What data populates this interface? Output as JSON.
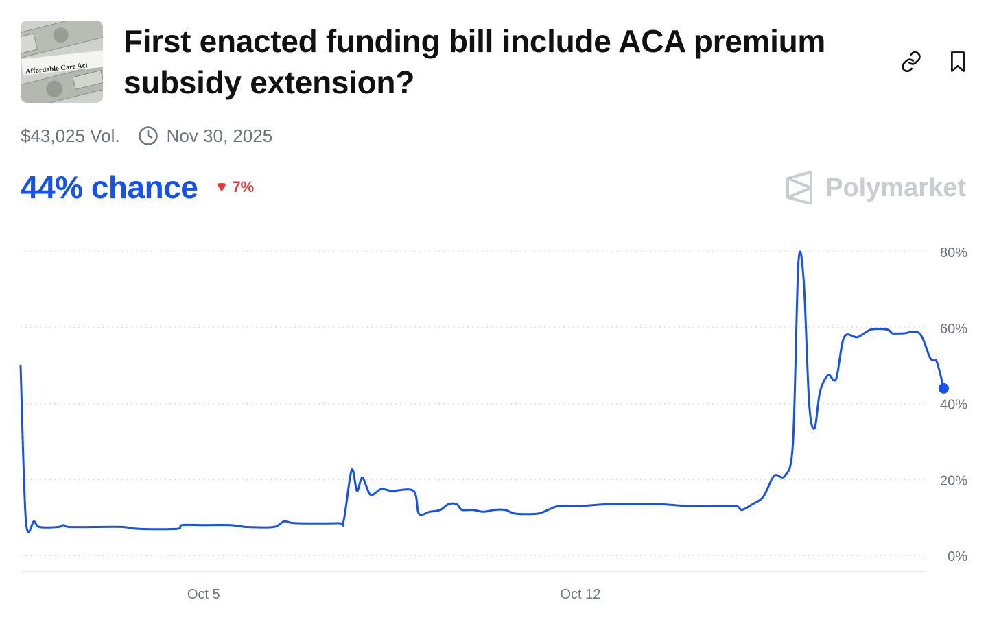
{
  "market": {
    "title": "First enacted funding bill include ACA premium subsidy extension?",
    "thumbnail_caption": "Affordable Care Act",
    "volume": "$43,025 Vol.",
    "end_date": "Nov 30, 2025",
    "chance_label": "44% chance",
    "change_label": "7%",
    "change_direction": "down",
    "brand": "Polymarket"
  },
  "icons": {
    "link": "link-icon",
    "bookmark": "bookmark-icon",
    "clock": "clock-icon",
    "down_arrow": "triangle-down-icon",
    "brand_logo": "polymarket-logo-icon"
  },
  "colors": {
    "accent": "#1652f0",
    "negative": "#e23b3b",
    "muted": "#6b7280",
    "grid": "#d7d9dd",
    "brand_muted": "#c9ccd2"
  },
  "chart_data": {
    "type": "line",
    "ylim": [
      0,
      80
    ],
    "yticks": [
      0,
      20,
      40,
      60,
      80
    ],
    "ytick_labels": [
      "0%",
      "20%",
      "40%",
      "60%",
      "80%"
    ],
    "xlim": [
      0.6,
      17.4
    ],
    "xtick_positions": [
      4,
      11
    ],
    "xtick_labels": [
      "Oct 5",
      "Oct 12"
    ],
    "grid": true,
    "series": [
      {
        "points": [
          [
            0.6,
            50
          ],
          [
            0.7,
            9
          ],
          [
            0.85,
            9
          ],
          [
            0.95,
            7.5
          ],
          [
            1.3,
            7.5
          ],
          [
            1.4,
            8
          ],
          [
            1.5,
            7.5
          ],
          [
            2.0,
            7.5
          ],
          [
            2.5,
            7.5
          ],
          [
            2.8,
            7
          ],
          [
            3.5,
            7
          ],
          [
            3.6,
            8
          ],
          [
            4.0,
            8
          ],
          [
            4.5,
            8
          ],
          [
            4.8,
            7.5
          ],
          [
            5.3,
            7.5
          ],
          [
            5.5,
            9
          ],
          [
            5.7,
            8.5
          ],
          [
            6.5,
            8.5
          ],
          [
            6.6,
            9
          ],
          [
            6.75,
            22.5
          ],
          [
            6.85,
            17
          ],
          [
            6.95,
            20.5
          ],
          [
            7.1,
            16
          ],
          [
            7.3,
            17.5
          ],
          [
            7.5,
            17
          ],
          [
            7.9,
            17
          ],
          [
            8.0,
            11
          ],
          [
            8.2,
            11.5
          ],
          [
            8.4,
            12
          ],
          [
            8.55,
            13.5
          ],
          [
            8.7,
            13.5
          ],
          [
            8.8,
            12
          ],
          [
            9.0,
            12
          ],
          [
            9.2,
            11.5
          ],
          [
            9.4,
            12
          ],
          [
            9.6,
            12
          ],
          [
            9.8,
            11
          ],
          [
            10.2,
            11
          ],
          [
            10.4,
            12
          ],
          [
            10.6,
            13
          ],
          [
            11.0,
            13
          ],
          [
            11.5,
            13.5
          ],
          [
            12.0,
            13.5
          ],
          [
            12.5,
            13.5
          ],
          [
            13.0,
            13
          ],
          [
            13.6,
            13
          ],
          [
            13.9,
            13
          ],
          [
            14.0,
            12
          ],
          [
            14.2,
            13.5
          ],
          [
            14.4,
            15.5
          ],
          [
            14.6,
            21
          ],
          [
            14.8,
            21
          ],
          [
            14.95,
            30
          ],
          [
            15.05,
            77
          ],
          [
            15.15,
            72
          ],
          [
            15.25,
            40
          ],
          [
            15.35,
            33.5
          ],
          [
            15.45,
            43
          ],
          [
            15.6,
            47.5
          ],
          [
            15.75,
            46.5
          ],
          [
            15.9,
            57.5
          ],
          [
            16.15,
            57.5
          ],
          [
            16.4,
            59.5
          ],
          [
            16.7,
            59.5
          ],
          [
            16.8,
            58.5
          ],
          [
            17.0,
            58.5
          ],
          [
            17.3,
            58.5
          ],
          [
            17.5,
            52
          ],
          [
            17.62,
            51
          ],
          [
            17.75,
            44
          ]
        ],
        "color": "#1652f0"
      }
    ],
    "last_value": 44
  }
}
